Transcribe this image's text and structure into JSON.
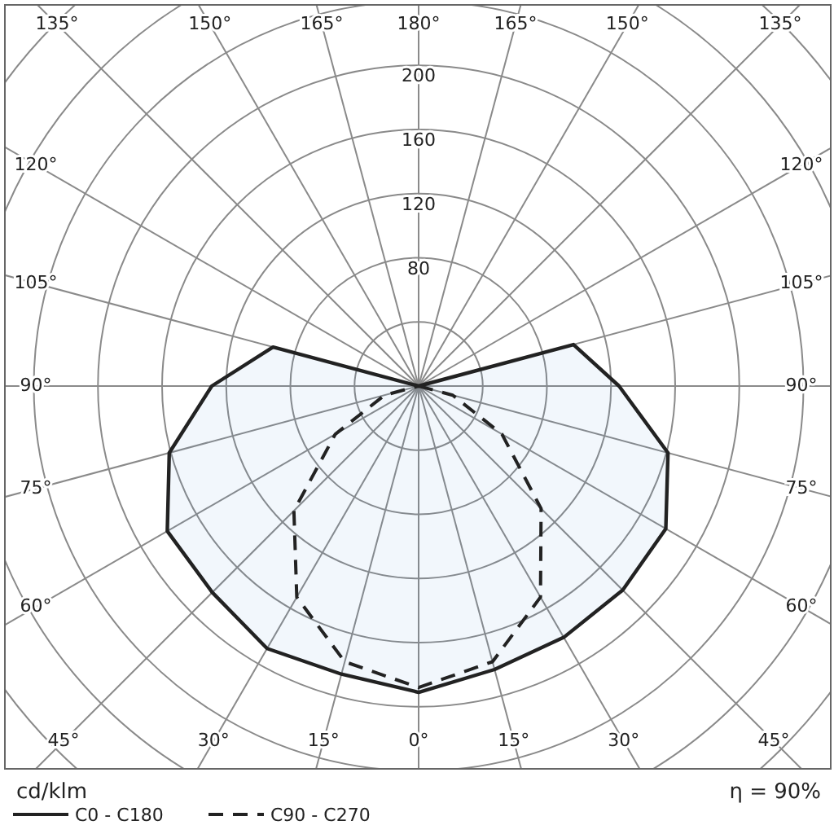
{
  "chart_data": {
    "type": "radar",
    "categories": [
      "180°",
      "165°",
      "150°",
      "135°",
      "120°",
      "105°",
      "90°",
      "75°",
      "60°",
      "45°",
      "30°",
      "15°",
      "0°",
      "15°",
      "30°",
      "45°",
      "60°",
      "75°",
      "90°",
      "105°",
      "120°",
      "135°",
      "150°",
      "165°"
    ],
    "series": [
      {
        "name": "C0 - C180",
        "color": "#222222",
        "line_style": "solid",
        "values": [
          0,
          0,
          0,
          0,
          0,
          100,
          125,
          161,
          178,
          180,
          181,
          183,
          191,
          186,
          189,
          182,
          181,
          161,
          129,
          94,
          0,
          0,
          0,
          0
        ]
      },
      {
        "name": "C90 - C270",
        "color": "#222222",
        "line_style": "dashed",
        "values": [
          0,
          0,
          0,
          0,
          0,
          0,
          0,
          22,
          60,
          108,
          152,
          178,
          188,
          178,
          152,
          110,
          60,
          22,
          0,
          0,
          0,
          0,
          0,
          0
        ]
      }
    ],
    "ylim": [
      0,
      320
    ],
    "yticks": [
      80,
      120,
      160,
      200
    ],
    "grid": true,
    "ylabel": "cd/klm",
    "legend": "bottom",
    "annotations": [
      "η = 90%"
    ]
  }
}
